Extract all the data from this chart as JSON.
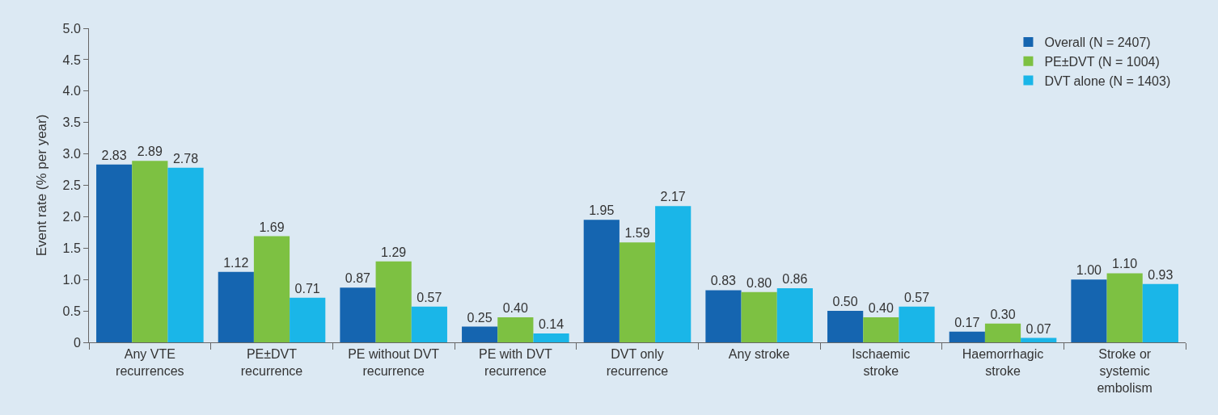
{
  "chart_data": {
    "type": "bar",
    "ylabel": "Event rate (% per year)",
    "categories": [
      "Any VTE\nrecurrences",
      "PE±DVT\nrecurrence",
      "PE without DVT\nrecurrence",
      "PE with DVT\nrecurrence",
      "DVT only\nrecurrence",
      "Any stroke",
      "Ischaemic\nstroke",
      "Haemorrhagic\nstroke",
      "Stroke or\nsystemic\nembolism"
    ],
    "series": [
      {
        "name": "Overall (N = 2407)",
        "color": "#1565b0",
        "values": [
          2.83,
          1.12,
          0.87,
          0.25,
          1.95,
          0.83,
          0.5,
          0.17,
          1.0
        ],
        "value_labels": [
          "2.83",
          "1.12",
          "0.87",
          "0.25",
          "1.95",
          "0.83",
          "0.50",
          "0.17",
          "1.00"
        ]
      },
      {
        "name": "PE±DVT (N = 1004)",
        "color": "#7dc142",
        "values": [
          2.89,
          1.69,
          1.29,
          0.4,
          1.59,
          0.8,
          0.4,
          0.3,
          1.1
        ],
        "value_labels": [
          "2.89",
          "1.69",
          "1.29",
          "0.40",
          "1.59",
          "0.80",
          "0.40",
          "0.30",
          "1.10"
        ]
      },
      {
        "name": "DVT alone (N = 1403)",
        "color": "#1ab6e8",
        "values": [
          2.78,
          0.71,
          0.57,
          0.14,
          2.17,
          0.86,
          0.57,
          0.07,
          0.93
        ],
        "value_labels": [
          "2.78",
          "0.71",
          "0.57",
          "0.14",
          "2.17",
          "0.86",
          "0.57",
          "0.07",
          "0.93"
        ]
      }
    ],
    "ylim": [
      0,
      5
    ],
    "yticks": [
      0,
      {
        "value": 0.5,
        "label": "0.5"
      },
      {
        "value": 1,
        "label": "1.0"
      },
      {
        "value": 1.5,
        "label": "1.5"
      },
      {
        "value": 2,
        "label": "2.0"
      },
      {
        "value": 2.5,
        "label": "2.5"
      },
      {
        "value": 3,
        "label": "3.0"
      },
      {
        "value": 3.5,
        "label": "3.5"
      },
      {
        "value": 4,
        "label": "4.0"
      },
      {
        "value": 4.5,
        "label": "4.5"
      },
      {
        "value": 5,
        "label": "5.0"
      }
    ],
    "grid": false,
    "legend": "top right"
  }
}
